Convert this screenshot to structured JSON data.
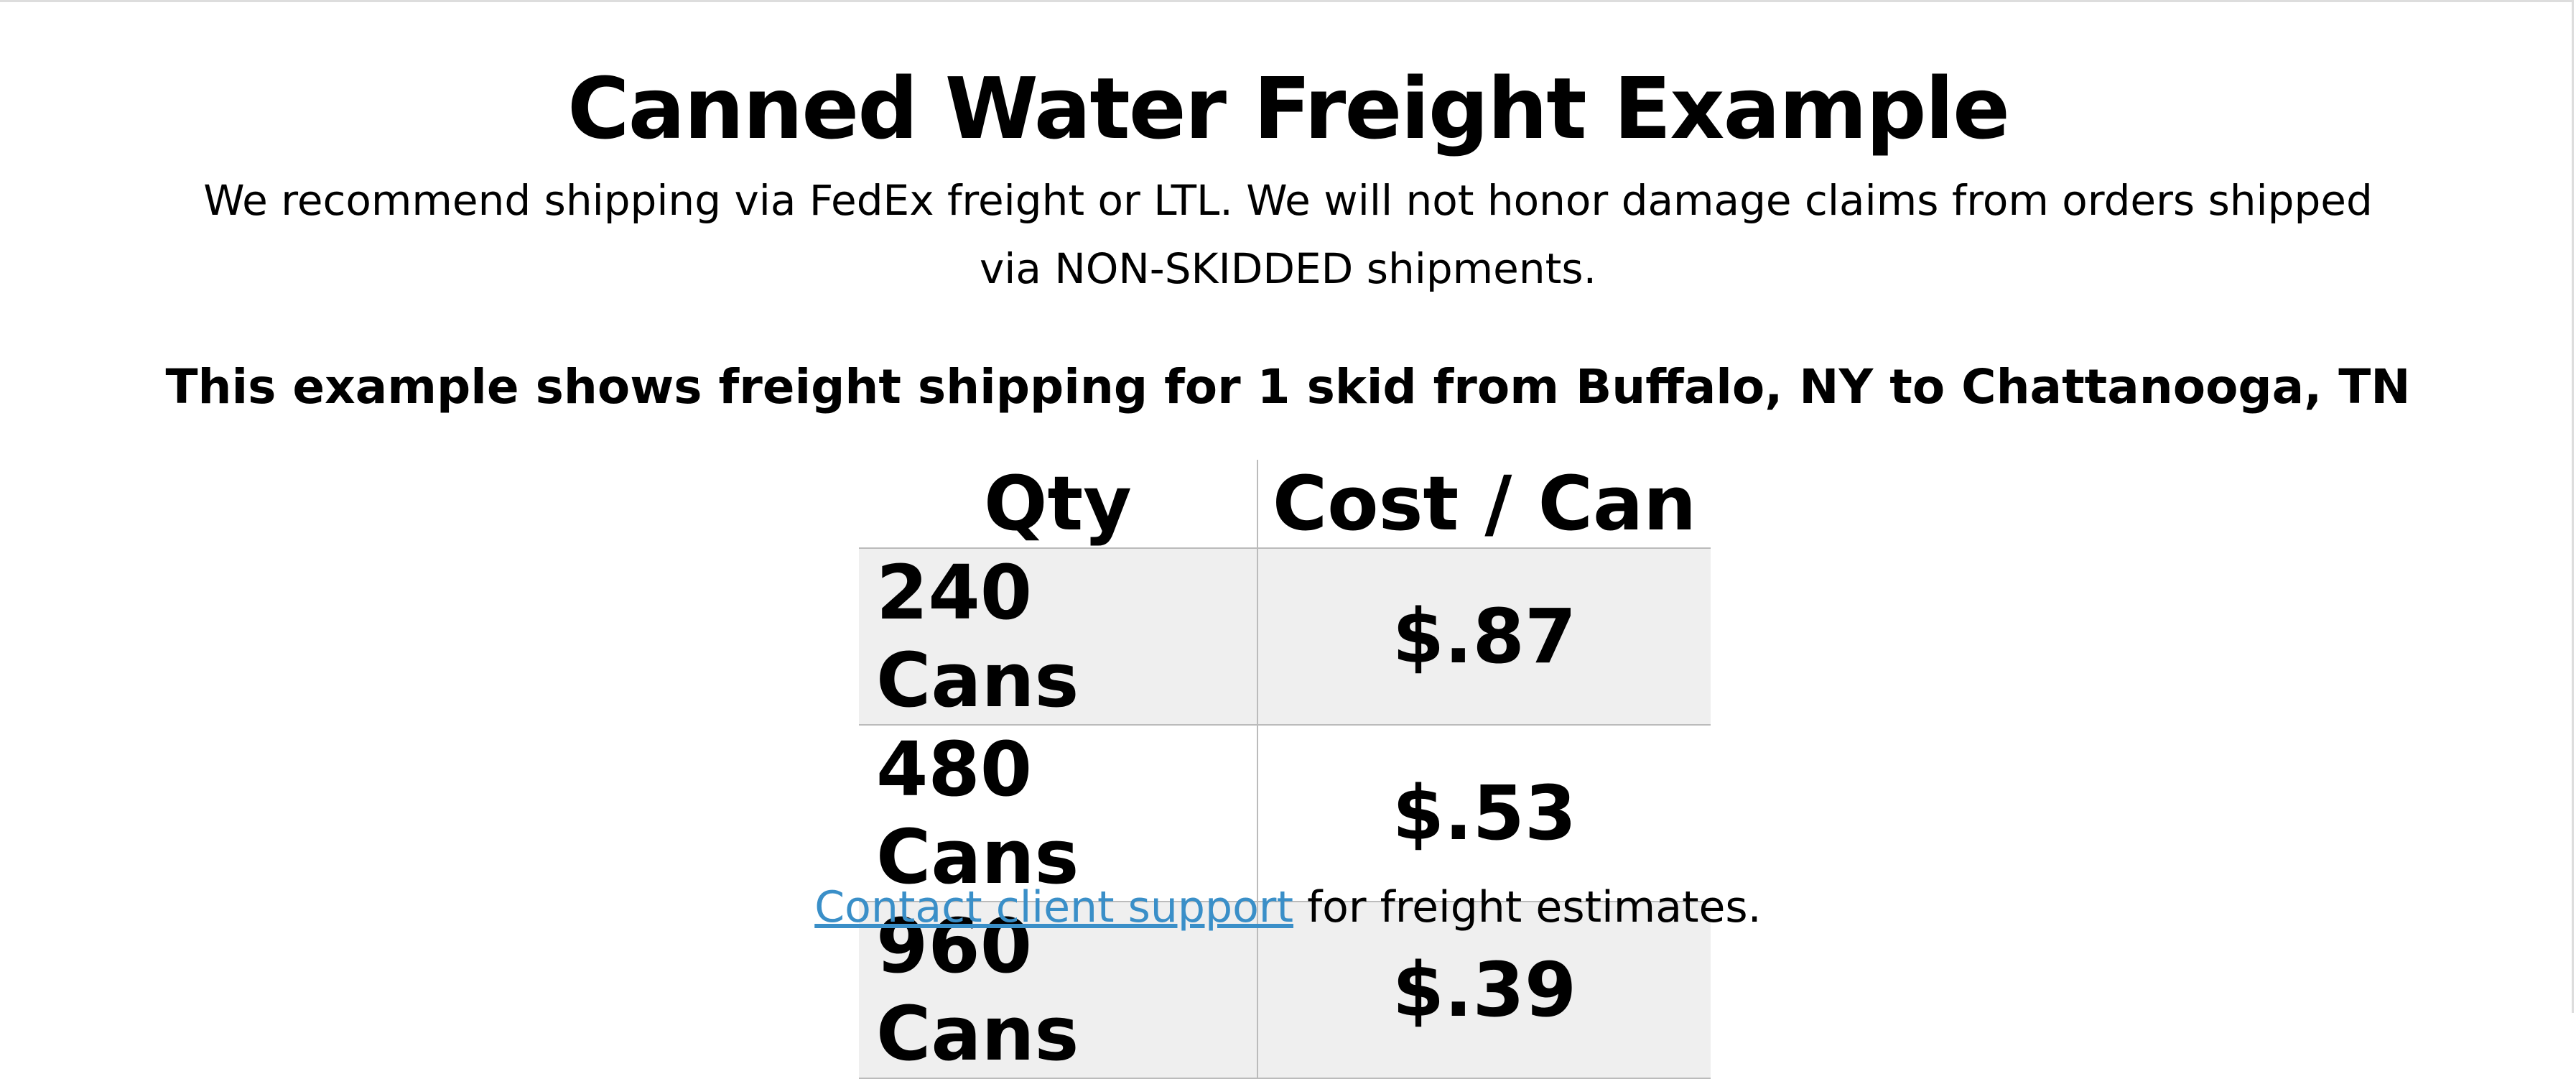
{
  "header": {
    "title": "Canned Water Freight Example",
    "subtitle": "We recommend shipping via FedEx freight or LTL. We will not honor damage claims from orders shipped via NON-SKIDDED shipments.",
    "description": "This example shows freight shipping for 1 skid from Buffalo, NY to Chattanooga, TN"
  },
  "table": {
    "columns": [
      "Qty",
      "Cost / Can"
    ],
    "rows": [
      [
        "240 Cans",
        "$.87"
      ],
      [
        "480 Cans",
        "$.53"
      ],
      [
        "960 Cans",
        "$.39"
      ]
    ]
  },
  "footer": {
    "link": "Contact client support",
    "text": "for freight estimates."
  }
}
